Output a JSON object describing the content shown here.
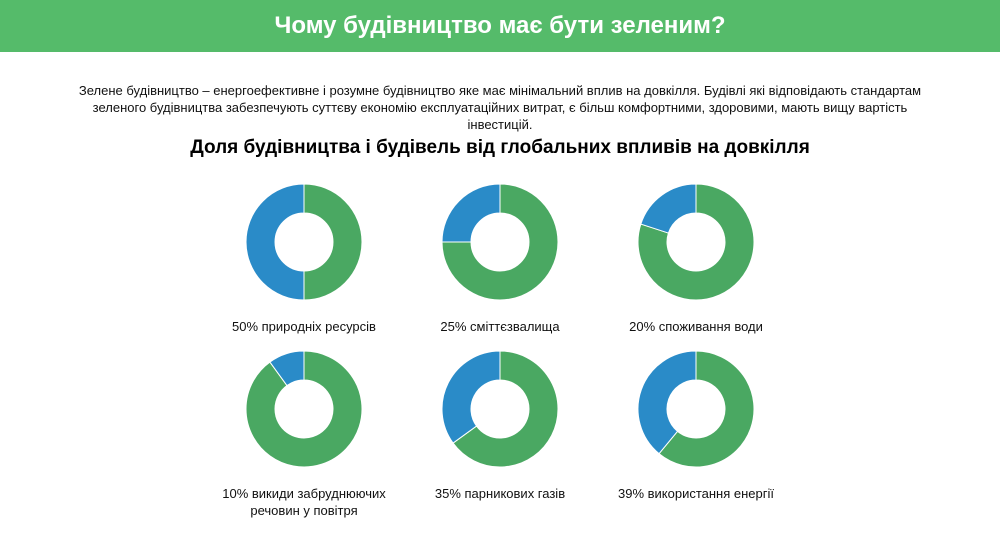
{
  "header": {
    "title": "Чому будівництво має бути зеленим?"
  },
  "intro": {
    "line1": "Зелене будівництво – енергоефективне і  розумне будівництво яке має мінімальний вплив на довкілля.  Будівлі  які відповідають стандартам",
    "line2": "зеленого будівництва забезпечують суттєву економію експлуатаційних витрат, є більш комфортними, здоровими, мають вищу вартість інвестицій."
  },
  "colors": {
    "header_bg": "#55bb6a",
    "share": "#2a8bc8",
    "rest": "#4aa862"
  },
  "chart_data": {
    "type": "pie",
    "title": "Доля будівництва і будівель від глобальних впливів на довкілля",
    "series_colors": {
      "share": "#2a8bc8",
      "rest": "#4aa862"
    },
    "charts": [
      {
        "value": 50,
        "label": "50% природніх ресурсів"
      },
      {
        "value": 25,
        "label": "25% сміттєзвалища"
      },
      {
        "value": 20,
        "label": "20% споживання води"
      },
      {
        "value": 10,
        "label": "10% викиди забруднюючих",
        "label2": "речовин у повітря"
      },
      {
        "value": 35,
        "label": "35% парникових газів"
      },
      {
        "value": 39,
        "label": "39% використання енергії"
      }
    ]
  }
}
